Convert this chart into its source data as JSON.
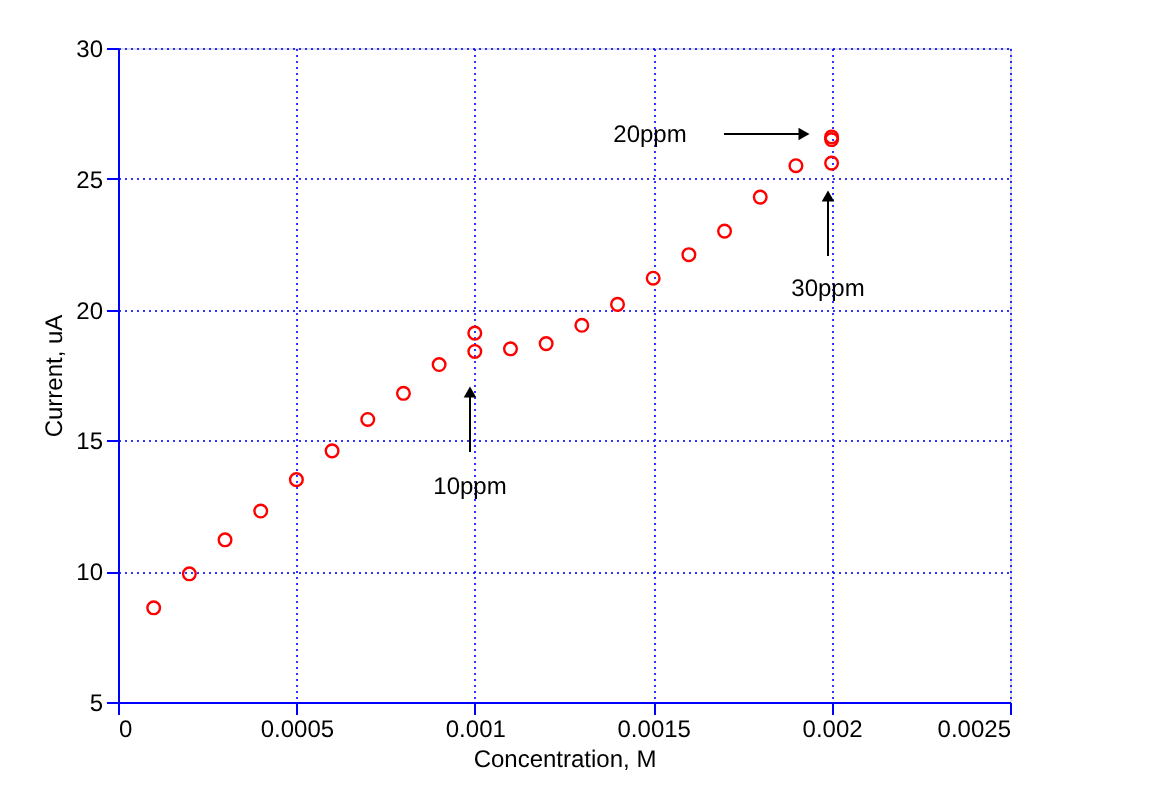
{
  "chart_data": {
    "type": "scatter",
    "xlabel": "Concentration, M",
    "ylabel": "Current, uA",
    "x": [
      0.0001,
      0.0002,
      0.0003,
      0.0004,
      0.0005,
      0.0006,
      0.0007,
      0.0008,
      0.0009,
      0.001,
      0.001,
      0.0011,
      0.0012,
      0.0013,
      0.0014,
      0.0015,
      0.0016,
      0.0017,
      0.0018,
      0.0019,
      0.002,
      0.002,
      0.002
    ],
    "series": [
      {
        "color": "#ff0000",
        "values": [
          8.6,
          9.9,
          11.2,
          12.3,
          13.5,
          14.6,
          15.8,
          16.8,
          17.9,
          18.4,
          19.1,
          18.5,
          18.7,
          19.4,
          20.2,
          21.2,
          22.1,
          23.0,
          24.3,
          25.5,
          25.6,
          26.5,
          26.6
        ]
      }
    ],
    "xlim": [
      0,
      0.0025
    ],
    "xticks": [
      0,
      0.0005,
      0.001,
      0.0015,
      0.002,
      0.0025
    ],
    "ylim": [
      5,
      30
    ],
    "yticks": [
      5,
      10,
      15,
      20,
      25,
      30
    ],
    "grid": true,
    "marker": "circle",
    "legend": false,
    "annotations": [
      "10ppm",
      "20ppm",
      "30ppm"
    ]
  }
}
